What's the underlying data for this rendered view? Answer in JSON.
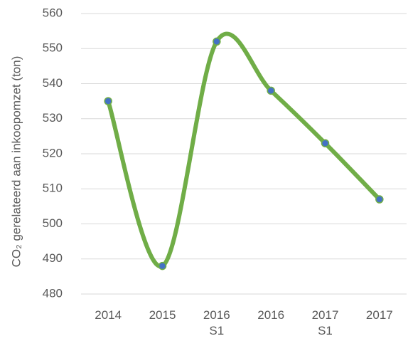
{
  "chart_data": {
    "type": "line",
    "y_label": "CO₂ gerelateerd aan inkoopomzet (ton)",
    "categories": [
      "2014",
      "2015",
      "2016 S1",
      "2016",
      "2017 S1",
      "2017"
    ],
    "values": [
      535,
      488,
      552,
      538,
      523,
      507
    ],
    "color": "#70ad47",
    "marker_color": "#4472c4",
    "ylim": [
      480,
      560
    ],
    "yticks": [
      480,
      490,
      500,
      510,
      520,
      530,
      540,
      550,
      560
    ],
    "grid": true,
    "smooth": true
  }
}
